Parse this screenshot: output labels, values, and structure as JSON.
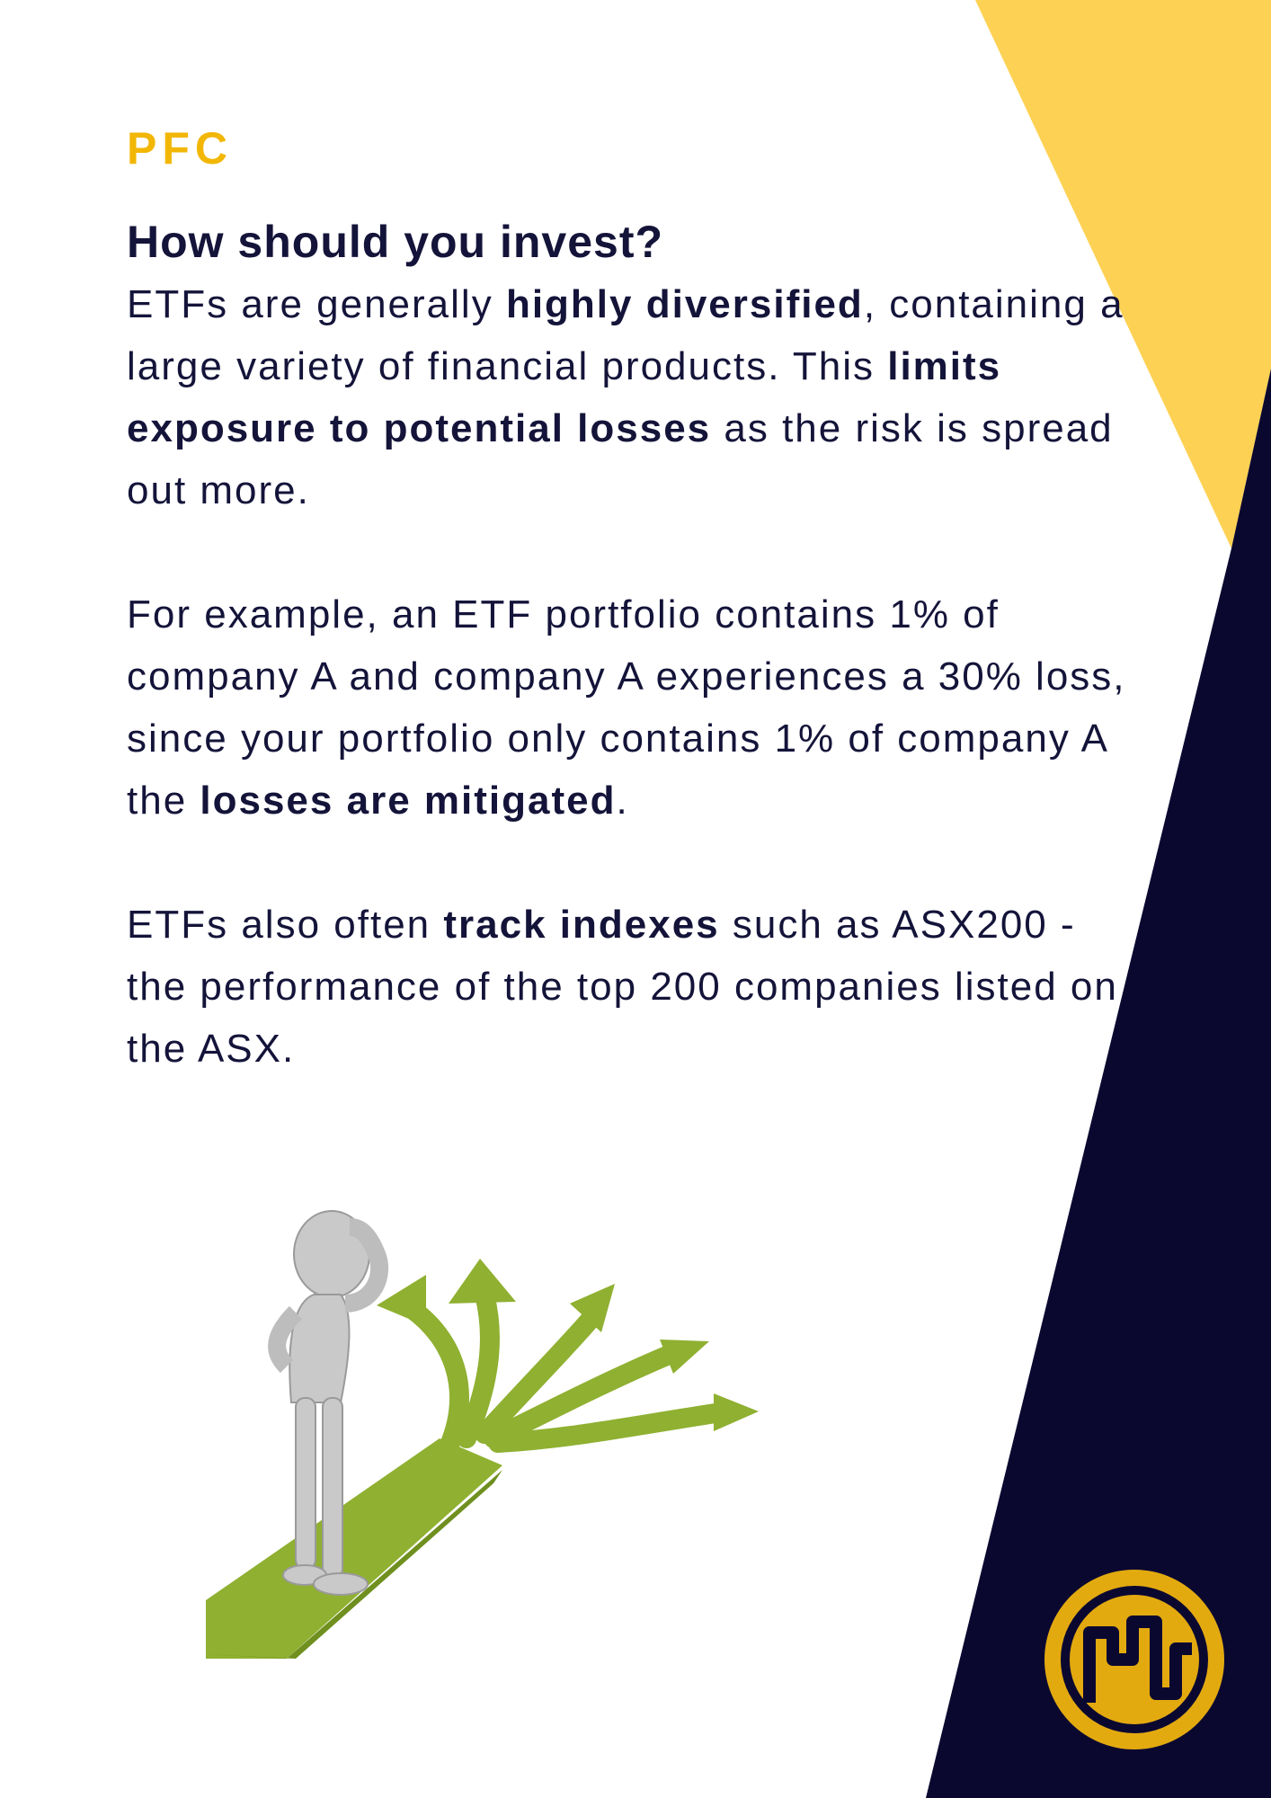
{
  "brand": "PFC",
  "title": "How should you invest?",
  "paragraphs": [
    [
      {
        "text": "ETFs are generally ",
        "bold": false
      },
      {
        "text": "highly diversified",
        "bold": true
      },
      {
        "text": ", containing a large variety of financial products. This ",
        "bold": false
      },
      {
        "text": "limits exposure to potential losses",
        "bold": true
      },
      {
        "text": " as the risk is spread out more.",
        "bold": false
      }
    ],
    [
      {
        "text": "For example, an ETF portfolio contains 1% of company A and company A experiences a 30% loss, since your portfolio only contains 1% of company A the ",
        "bold": false
      },
      {
        "text": "losses are mitigated",
        "bold": true
      },
      {
        "text": ".",
        "bold": false
      }
    ],
    [
      {
        "text": "ETFs also often ",
        "bold": false
      },
      {
        "text": "track indexes",
        "bold": true
      },
      {
        "text": " such as ASX200 - the performance of the top 200 companies listed on the ASX.",
        "bold": false
      }
    ]
  ],
  "colors": {
    "accent_yellow": "#fdd153",
    "navy": "#0b0830",
    "brand_gold": "#f2b705",
    "path_green": "#8fb031"
  },
  "icons": {
    "illustration": "person-at-crossroads-arrows",
    "logo": "pfc-circle-logo"
  }
}
